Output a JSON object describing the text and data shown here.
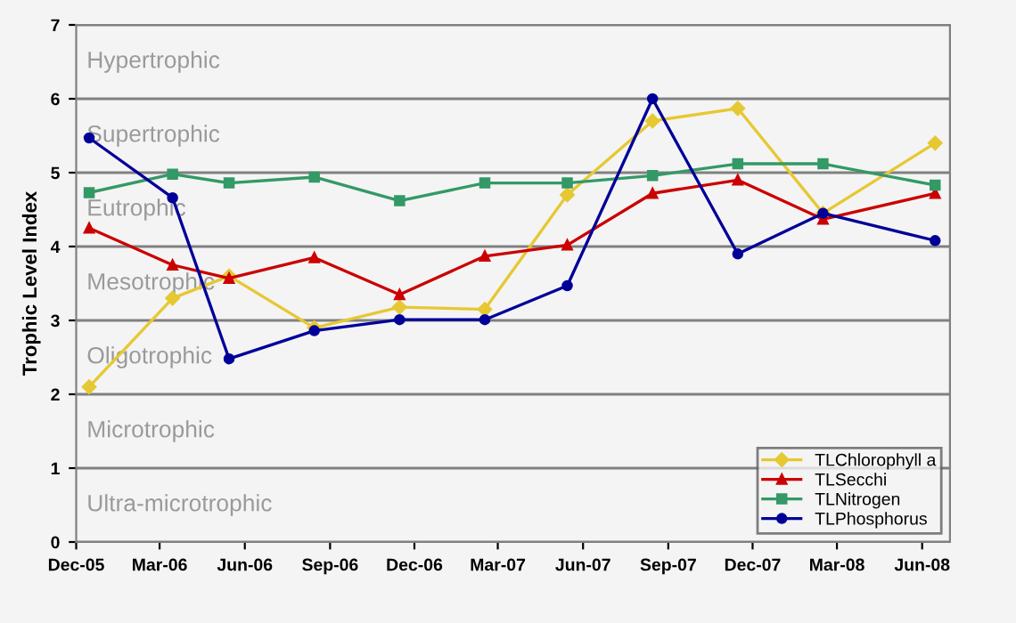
{
  "chart_data": {
    "type": "line",
    "ylabel": "Trophic Level Index",
    "x": [
      "2005-12-15",
      "2006-03-15",
      "2006-05-15",
      "2006-08-15",
      "2006-11-15",
      "2007-02-15",
      "2007-05-15",
      "2007-08-15",
      "2007-11-15",
      "2008-02-15",
      "2008-06-15"
    ],
    "series": [
      {
        "name": "TLChlorophyll a",
        "color": "#e6c832",
        "marker": "diamond",
        "values": [
          2.1,
          3.3,
          3.6,
          2.9,
          3.18,
          3.15,
          4.7,
          5.7,
          5.87,
          4.45,
          5.4
        ]
      },
      {
        "name": "TLSecchi",
        "color": "#cc0000",
        "marker": "triangle",
        "values": [
          4.25,
          3.75,
          3.57,
          3.85,
          3.35,
          3.87,
          4.02,
          4.72,
          4.9,
          4.37,
          4.72
        ]
      },
      {
        "name": "TLNitrogen",
        "color": "#339966",
        "marker": "square",
        "values": [
          4.73,
          4.98,
          4.86,
          4.94,
          4.62,
          4.86,
          4.86,
          4.96,
          5.12,
          5.12,
          4.83
        ]
      },
      {
        "name": "TLPhosphorus",
        "color": "#000099",
        "marker": "circle",
        "values": [
          5.47,
          4.66,
          2.48,
          2.86,
          3.01,
          3.01,
          3.47,
          6.0,
          3.9,
          4.45,
          4.08
        ]
      }
    ],
    "xlim": [
      "2005-12-01",
      "2008-07-01"
    ],
    "xticks": [
      {
        "value": "2005-12-01",
        "label": "Dec-05"
      },
      {
        "value": "2006-03-01",
        "label": "Mar-06"
      },
      {
        "value": "2006-06-01",
        "label": "Jun-06"
      },
      {
        "value": "2006-09-01",
        "label": "Sep-06"
      },
      {
        "value": "2006-12-01",
        "label": "Dec-06"
      },
      {
        "value": "2007-03-01",
        "label": "Mar-07"
      },
      {
        "value": "2007-06-01",
        "label": "Jun-07"
      },
      {
        "value": "2007-09-01",
        "label": "Sep-07"
      },
      {
        "value": "2007-12-01",
        "label": "Dec-07"
      },
      {
        "value": "2008-03-01",
        "label": "Mar-08"
      },
      {
        "value": "2008-06-01",
        "label": "Jun-08"
      }
    ],
    "ylim": [
      0,
      7
    ],
    "yticks": [
      0,
      1,
      2,
      3,
      4,
      5,
      6,
      7
    ],
    "grid": "y",
    "legend": "bottom right",
    "annotations": [
      "Hypertrophic",
      "Supertrophic",
      "Eutrophic",
      "Mesotrophic",
      "Oligotrophic",
      "Microtrophic",
      "Ultra-microtrophic"
    ]
  }
}
